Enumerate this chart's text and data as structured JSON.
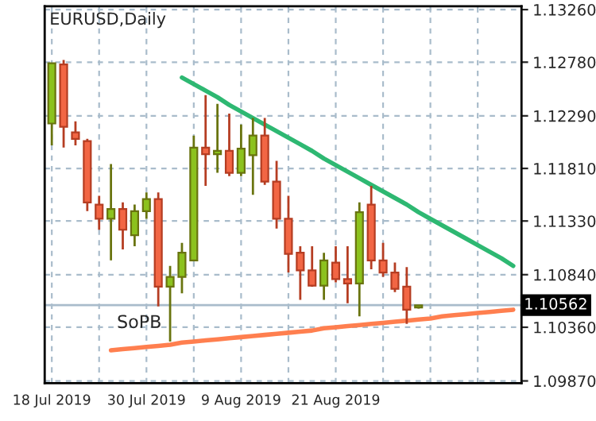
{
  "chart_data": {
    "type": "candlestick",
    "title": "EURUSD,Daily",
    "categories": [
      "18 Jul 2019",
      null,
      null,
      null,
      null,
      null,
      null,
      null,
      "30 Jul 2019",
      null,
      null,
      null,
      null,
      null,
      null,
      null,
      "9 Aug 2019",
      null,
      null,
      null,
      null,
      null,
      null,
      null,
      "21 Aug 2019",
      null,
      null,
      null,
      null,
      null,
      null,
      null,
      null,
      null,
      null,
      null,
      null,
      null,
      null,
      null
    ],
    "ohlc": [
      [
        1.1222,
        1.1277,
        1.1202,
        1.1277
      ],
      [
        1.1276,
        1.128,
        1.12,
        1.1219
      ],
      [
        1.1214,
        1.1224,
        1.1202,
        1.1208
      ],
      [
        1.1206,
        1.1208,
        1.1142,
        1.115
      ],
      [
        1.1148,
        1.1156,
        1.1125,
        1.1135
      ],
      [
        1.1135,
        1.1185,
        1.1097,
        1.1144
      ],
      [
        1.1144,
        1.115,
        1.1107,
        1.1125
      ],
      [
        1.112,
        1.1148,
        1.111,
        1.1142
      ],
      [
        1.1142,
        1.1159,
        1.1135,
        1.1153
      ],
      [
        1.1153,
        1.1159,
        1.1055,
        1.1073
      ],
      [
        1.1073,
        1.1092,
        1.1023,
        1.1082
      ],
      [
        1.1082,
        1.1113,
        1.1067,
        1.1104
      ],
      [
        1.1097,
        1.1211,
        1.1097,
        1.12
      ],
      [
        1.12,
        1.1248,
        1.1165,
        1.1194
      ],
      [
        1.1194,
        1.124,
        1.1177,
        1.1197
      ],
      [
        1.1197,
        1.1231,
        1.1174,
        1.1177
      ],
      [
        1.1177,
        1.1221,
        1.1174,
        1.1199
      ],
      [
        1.1193,
        1.1227,
        1.1157,
        1.1211
      ],
      [
        1.1211,
        1.1227,
        1.1166,
        1.1169
      ],
      [
        1.1169,
        1.1188,
        1.1126,
        1.1135
      ],
      [
        1.1135,
        1.1156,
        1.1086,
        1.1103
      ],
      [
        1.1104,
        1.111,
        1.1061,
        1.1088
      ],
      [
        1.1088,
        1.111,
        1.1073,
        1.1074
      ],
      [
        1.1074,
        1.1104,
        1.1061,
        1.1097
      ],
      [
        1.1095,
        1.111,
        1.1077,
        1.108
      ],
      [
        1.108,
        1.111,
        1.1058,
        1.1076
      ],
      [
        1.1076,
        1.115,
        1.1046,
        1.1141
      ],
      [
        1.1148,
        1.1165,
        1.1089,
        1.1097
      ],
      [
        1.1097,
        1.1113,
        1.1082,
        1.1086
      ],
      [
        1.1086,
        1.1095,
        1.1068,
        1.1071
      ],
      [
        1.1073,
        1.1091,
        1.1039,
        1.1052
      ],
      [
        1.1054,
        1.1056,
        1.1053,
        1.1056
      ],
      null,
      null,
      null,
      null,
      null,
      null,
      null,
      null
    ],
    "colors": [
      "#8cc21e",
      "#f26644",
      "#f26644",
      "#f26644",
      "#f26644",
      "#8cc21e",
      "#f26644",
      "#8cc21e",
      "#8cc21e",
      "#f26644",
      "#8cc21e",
      "#8cc21e",
      "#8cc21e",
      "#f26644",
      "#8cc21e",
      "#f26644",
      "#8cc21e",
      "#8cc21e",
      "#f26644",
      "#f26644",
      "#f26644",
      "#f26644",
      "#f26644",
      "#8cc21e",
      "#f26644",
      "#f26644",
      "#8cc21e",
      "#f26644",
      "#f26644",
      "#f26644",
      "#f26644",
      "#8cc21e",
      null,
      null,
      null,
      null,
      null,
      null,
      null,
      null
    ],
    "series": [
      {
        "type": "line",
        "color": "#2eb872",
        "values": [
          null,
          null,
          null,
          null,
          null,
          null,
          null,
          null,
          null,
          null,
          null,
          1.1264,
          1.1258,
          1.1252,
          1.1246,
          1.1239,
          1.1233,
          1.1227,
          1.1221,
          1.1215,
          1.1209,
          1.1203,
          1.1197,
          1.119,
          1.1184,
          1.1178,
          1.1172,
          1.1166,
          1.116,
          1.1154,
          1.1148,
          1.1141,
          1.1135,
          1.1129,
          1.1123,
          1.1117,
          1.1111,
          1.1105,
          1.1099,
          1.1092
        ]
      },
      {
        "type": "line",
        "color": "#ff7f4f",
        "values": [
          null,
          null,
          null,
          null,
          null,
          1.1015,
          1.1016,
          1.1017,
          1.1018,
          1.1019,
          1.102,
          1.1022,
          1.1023,
          1.1024,
          1.1025,
          1.1026,
          1.1027,
          1.1028,
          1.1029,
          1.103,
          1.1031,
          1.1032,
          1.1033,
          1.1035,
          1.1036,
          1.1037,
          1.1038,
          1.1039,
          1.104,
          1.1041,
          1.1042,
          1.1043,
          1.1044,
          1.1046,
          1.1047,
          1.1048,
          1.1049,
          1.105,
          1.1051,
          1.1052
        ]
      }
    ],
    "ylim": [
      1.0985,
      1.1329
    ],
    "yticks": [
      {
        "value": 1.0987,
        "label": "1.09870"
      },
      {
        "value": 1.1036,
        "label": "1.10360"
      },
      {
        "value": 1.1084,
        "label": "1.10840"
      },
      {
        "value": 1.1133,
        "label": "1.11330"
      },
      {
        "value": 1.1181,
        "label": "1.11810"
      },
      {
        "value": 1.1229,
        "label": "1.12290"
      },
      {
        "value": 1.1278,
        "label": "1.12780"
      },
      {
        "value": 1.1326,
        "label": "1.13260"
      }
    ],
    "ref_lines": [
      {
        "axis": "y",
        "value": 1.10562,
        "label": "1.10562",
        "color": "#a9bccb"
      }
    ],
    "annotations": [
      "SoPB"
    ],
    "grid": true,
    "legend": false
  }
}
